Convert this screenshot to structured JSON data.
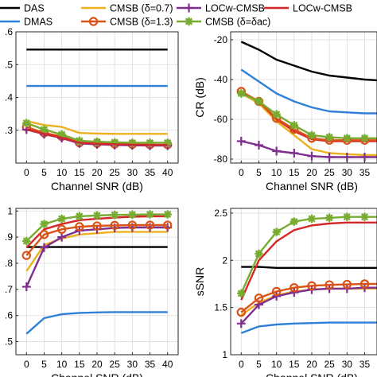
{
  "legend": {
    "entries": [
      {
        "label": "DAS",
        "color": "#000000",
        "marker": "none"
      },
      {
        "label": "CMSB (δ=0.7)",
        "color": "#EDB120",
        "marker": "none"
      },
      {
        "label": "LOCw-CMSB",
        "color": "#7E2F8E",
        "marker": "plus"
      },
      {
        "label": "LOCw-CMSB",
        "color": "#D62728",
        "marker": "none"
      },
      {
        "label": "DMAS",
        "color": "#2F80D8",
        "marker": "none"
      },
      {
        "label": "CMSB (δ=1.3)",
        "color": "#D95319",
        "marker": "circle"
      },
      {
        "label": "CMSB (δ=δac)",
        "color": "#77AC30",
        "marker": "star"
      }
    ]
  },
  "chart_data": [
    {
      "type": "line",
      "title": "",
      "xlabel": "Channel SNR (dB)",
      "ylabel": "",
      "x": [
        0,
        5,
        10,
        15,
        20,
        25,
        30,
        35,
        40
      ],
      "xticks": [
        "0",
        "5",
        "10",
        "15",
        "20",
        "25",
        "30",
        "35",
        "40"
      ],
      "ylim": [
        0.2,
        0.6
      ],
      "yticks": [
        ".3",
        ".4",
        ".5",
        ".6"
      ],
      "ytick_values": [
        0.3,
        0.4,
        0.5,
        0.6
      ],
      "grid": true,
      "series": [
        {
          "name": "DAS",
          "color": "#000000",
          "marker": "none",
          "values": [
            0.546,
            0.546,
            0.546,
            0.546,
            0.546,
            0.546,
            0.546,
            0.546,
            0.546
          ]
        },
        {
          "name": "DMAS",
          "color": "#2F80D8",
          "marker": "none",
          "values": [
            0.435,
            0.435,
            0.435,
            0.435,
            0.435,
            0.435,
            0.435,
            0.435,
            0.435
          ]
        },
        {
          "name": "CMSB (δ=0.7)",
          "color": "#EDB120",
          "marker": "none",
          "values": [
            0.328,
            0.316,
            0.31,
            0.292,
            0.29,
            0.289,
            0.289,
            0.289,
            0.289
          ]
        },
        {
          "name": "CMSB (δ=1.3)",
          "color": "#D95319",
          "marker": "circle",
          "values": [
            0.31,
            0.292,
            0.281,
            0.262,
            0.26,
            0.258,
            0.257,
            0.256,
            0.256
          ]
        },
        {
          "name": "LOCw-CMSB",
          "color": "#7E2F8E",
          "marker": "plus",
          "values": [
            0.302,
            0.288,
            0.276,
            0.26,
            0.257,
            0.255,
            0.254,
            0.253,
            0.253
          ]
        },
        {
          "name": "CMSB (δ=δac)",
          "color": "#77AC30",
          "marker": "star",
          "values": [
            0.322,
            0.302,
            0.287,
            0.268,
            0.265,
            0.263,
            0.262,
            0.262,
            0.262
          ]
        },
        {
          "name": "LOCw-CMSB",
          "color": "#D62728",
          "marker": "none",
          "values": [
            0.303,
            0.289,
            0.277,
            0.262,
            0.259,
            0.257,
            0.256,
            0.255,
            0.255
          ]
        }
      ]
    },
    {
      "type": "line",
      "title": "",
      "xlabel": "Channel SNR (dB)",
      "ylabel": "CR (dB)",
      "x": [
        0,
        5,
        10,
        15,
        20,
        25,
        30,
        35,
        40
      ],
      "xticks": [
        "0",
        "5",
        "10",
        "15",
        "20",
        "25",
        "30",
        "35"
      ],
      "xtick_values": [
        0,
        5,
        10,
        15,
        20,
        25,
        30,
        35
      ],
      "xlim": [
        -3,
        38.5
      ],
      "ylim": [
        -82,
        -16
      ],
      "yticks": [
        "-20",
        "-40",
        "-60",
        "-80"
      ],
      "ytick_values": [
        -20,
        -40,
        -60,
        -80
      ],
      "grid": true,
      "series": [
        {
          "name": "DAS",
          "color": "#000000",
          "marker": "none",
          "values": [
            -21,
            -25,
            -30,
            -33,
            -36,
            -38,
            -39,
            -40,
            -40.5
          ]
        },
        {
          "name": "DMAS",
          "color": "#2F80D8",
          "marker": "none",
          "values": [
            -35,
            -41,
            -47,
            -51,
            -54,
            -56,
            -56.5,
            -57,
            -57
          ]
        },
        {
          "name": "CMSB (δ=0.7)",
          "color": "#EDB120",
          "marker": "none",
          "values": [
            -47,
            -52,
            -61,
            -68,
            -75,
            -77,
            -77.5,
            -78,
            -78
          ]
        },
        {
          "name": "LOCw-CMSB",
          "color": "#D62728",
          "marker": "none",
          "values": [
            -46,
            -51,
            -60,
            -66,
            -70,
            -71,
            -71,
            -71,
            -71
          ]
        },
        {
          "name": "CMSB (δ=1.3)",
          "color": "#D95319",
          "marker": "circle",
          "values": [
            -46,
            -51,
            -59.5,
            -65,
            -69.5,
            -70.5,
            -70.5,
            -70.5,
            -70.5
          ]
        },
        {
          "name": "CMSB (δ=δac)",
          "color": "#77AC30",
          "marker": "star",
          "values": [
            -47,
            -51,
            -57.5,
            -63,
            -68,
            -69,
            -69.5,
            -69.5,
            -69.5
          ]
        },
        {
          "name": "LOCw-CMSB",
          "color": "#7E2F8E",
          "marker": "plus",
          "values": [
            -71,
            -73,
            -76,
            -77,
            -78.5,
            -79,
            -79,
            -79,
            -79
          ]
        }
      ]
    },
    {
      "type": "line",
      "title": "",
      "xlabel": "Channel SNR (dB)",
      "ylabel": "",
      "x": [
        0,
        5,
        10,
        15,
        20,
        25,
        30,
        35,
        40
      ],
      "xticks": [
        "0",
        "5",
        "10",
        "15",
        "20",
        "25",
        "30",
        "35",
        "40"
      ],
      "ylim": [
        0.45,
        1.01
      ],
      "yticks": [
        "1",
        ".9",
        ".8",
        ".7",
        ".6",
        ".5"
      ],
      "ytick_values": [
        1.0,
        0.9,
        0.8,
        0.7,
        0.6,
        0.5
      ],
      "grid": true,
      "series": [
        {
          "name": "DAS",
          "color": "#000000",
          "marker": "none",
          "values": [
            0.862,
            0.862,
            0.862,
            0.862,
            0.862,
            0.862,
            0.862,
            0.862,
            0.862
          ]
        },
        {
          "name": "DMAS",
          "color": "#2F80D8",
          "marker": "none",
          "values": [
            0.53,
            0.59,
            0.605,
            0.61,
            0.612,
            0.613,
            0.613,
            0.613,
            0.613
          ]
        },
        {
          "name": "CMSB (δ=0.7)",
          "color": "#EDB120",
          "marker": "none",
          "values": [
            0.77,
            0.87,
            0.895,
            0.91,
            0.915,
            0.92,
            0.92,
            0.92,
            0.92
          ]
        },
        {
          "name": "LOCw-CMSB",
          "color": "#D62728",
          "marker": "none",
          "values": [
            0.86,
            0.93,
            0.95,
            0.965,
            0.97,
            0.975,
            0.978,
            0.98,
            0.98
          ]
        },
        {
          "name": "CMSB (δ=δac)",
          "color": "#77AC30",
          "marker": "star",
          "values": [
            0.885,
            0.95,
            0.97,
            0.98,
            0.983,
            0.985,
            0.986,
            0.987,
            0.987
          ]
        },
        {
          "name": "LOCw-CMSB",
          "color": "#7E2F8E",
          "marker": "plus",
          "values": [
            0.71,
            0.86,
            0.9,
            0.925,
            0.93,
            0.935,
            0.937,
            0.937,
            0.937
          ]
        },
        {
          "name": "CMSB (δ=1.3)",
          "color": "#D95319",
          "marker": "circle",
          "values": [
            0.83,
            0.91,
            0.93,
            0.94,
            0.943,
            0.945,
            0.946,
            0.946,
            0.946
          ]
        }
      ]
    },
    {
      "type": "line",
      "title": "",
      "xlabel": "Channel SNR (dB)",
      "ylabel": "sSNR",
      "x": [
        0,
        5,
        10,
        15,
        20,
        25,
        30,
        35,
        40
      ],
      "xticks": [
        "0",
        "5",
        "10",
        "15",
        "20",
        "25",
        "30",
        "35"
      ],
      "xtick_values": [
        0,
        5,
        10,
        15,
        20,
        25,
        30,
        35
      ],
      "xlim": [
        -3,
        38.5
      ],
      "ylim": [
        1.0,
        2.55
      ],
      "yticks": [
        "1",
        "1.5",
        "2",
        "2.5"
      ],
      "ytick_values": [
        1.0,
        1.5,
        2.0,
        2.5
      ],
      "grid": true,
      "series": [
        {
          "name": "DAS",
          "color": "#000000",
          "marker": "none",
          "values": [
            1.93,
            1.93,
            1.92,
            1.92,
            1.92,
            1.92,
            1.92,
            1.92,
            1.92
          ]
        },
        {
          "name": "DMAS",
          "color": "#2F80D8",
          "marker": "none",
          "values": [
            1.23,
            1.3,
            1.32,
            1.33,
            1.335,
            1.34,
            1.34,
            1.34,
            1.34
          ]
        },
        {
          "name": "CMSB (δ=0.7)",
          "color": "#EDB120",
          "marker": "none",
          "values": [
            1.42,
            1.55,
            1.63,
            1.67,
            1.69,
            1.7,
            1.7,
            1.7,
            1.7
          ]
        },
        {
          "name": "LOCw-CMSB",
          "color": "#7E2F8E",
          "marker": "plus",
          "values": [
            1.33,
            1.53,
            1.62,
            1.66,
            1.69,
            1.7,
            1.7,
            1.71,
            1.71
          ]
        },
        {
          "name": "CMSB (δ=1.3)",
          "color": "#D95319",
          "marker": "circle",
          "values": [
            1.45,
            1.6,
            1.67,
            1.71,
            1.73,
            1.74,
            1.745,
            1.75,
            1.75
          ]
        },
        {
          "name": "LOCw-CMSB",
          "color": "#D62728",
          "marker": "none",
          "values": [
            1.58,
            2.0,
            2.2,
            2.32,
            2.37,
            2.39,
            2.4,
            2.4,
            2.4
          ]
        },
        {
          "name": "CMSB (δ=δac)",
          "color": "#77AC30",
          "marker": "star",
          "values": [
            1.65,
            2.07,
            2.3,
            2.41,
            2.44,
            2.45,
            2.46,
            2.46,
            2.46
          ]
        }
      ]
    }
  ]
}
